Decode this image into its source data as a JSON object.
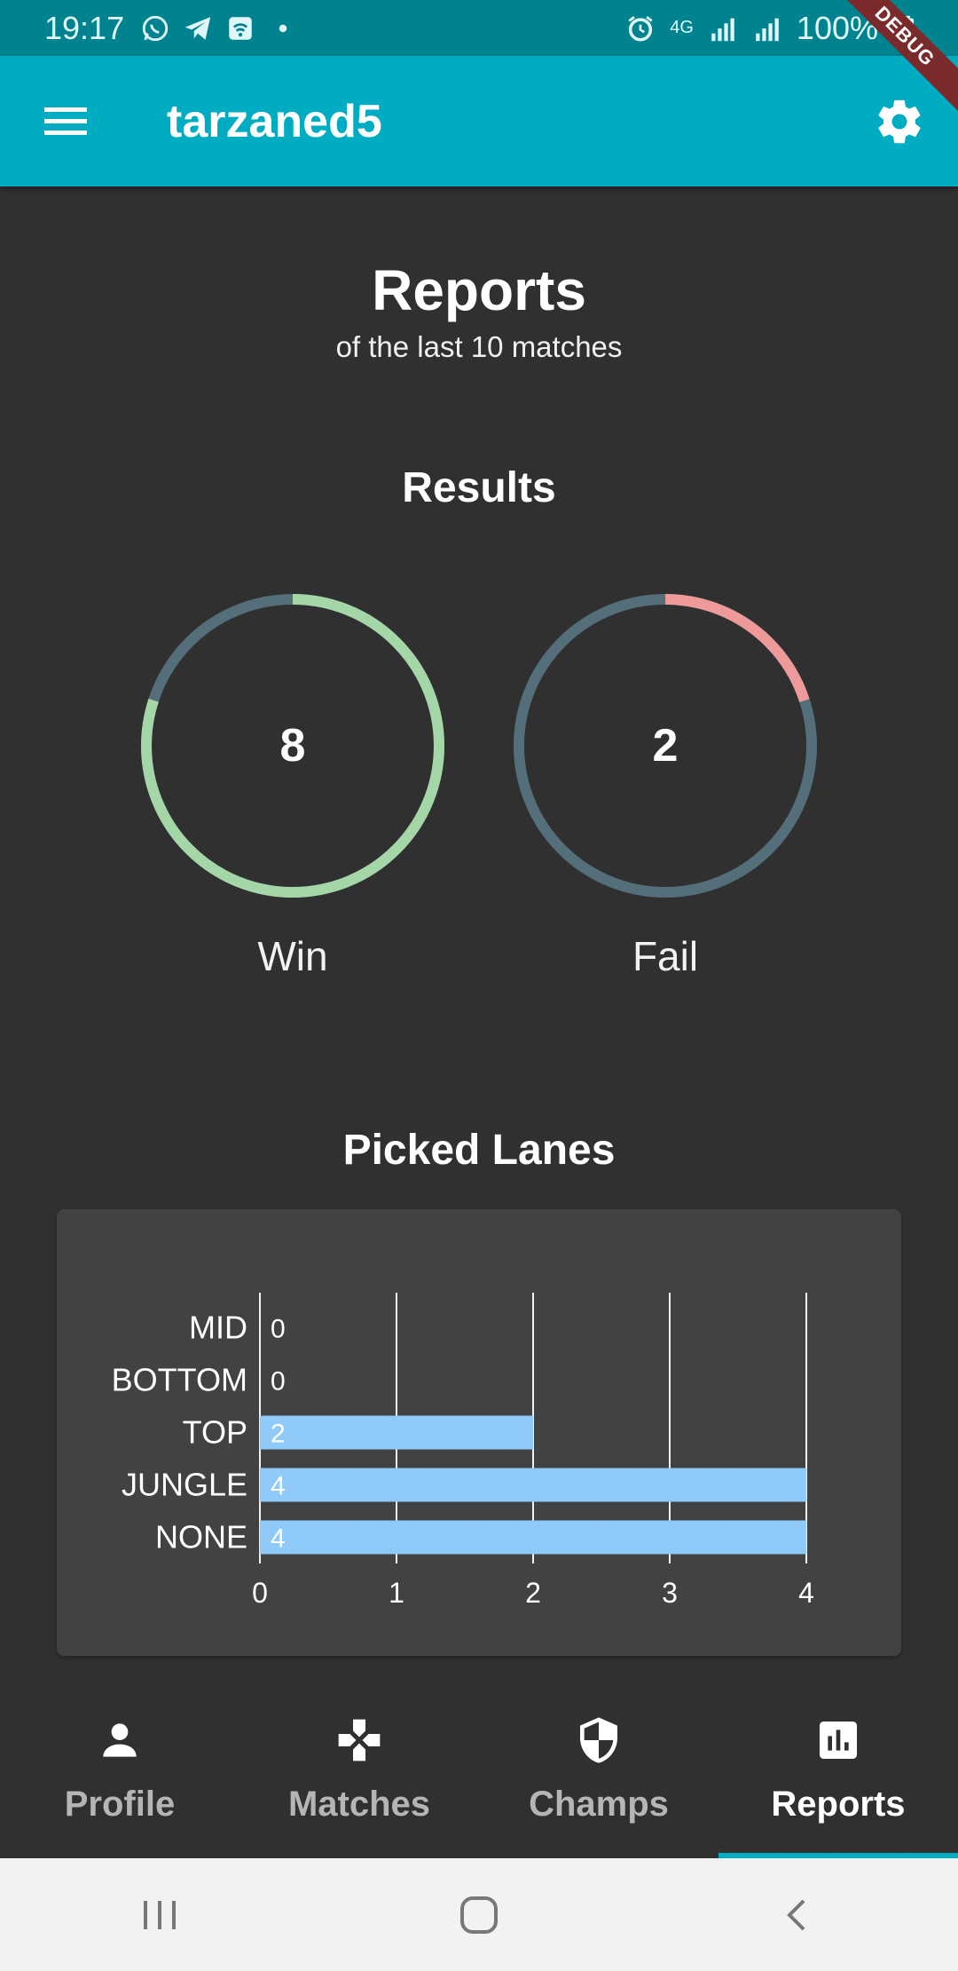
{
  "status_bar": {
    "time": "19:17",
    "battery": "100%",
    "network": "4G"
  },
  "debug_banner": "DEBUG",
  "app_bar": {
    "title": "tarzaned5",
    "menu_icon": "menu-icon",
    "settings_icon": "gear-icon",
    "color": "#00acc1"
  },
  "page": {
    "title": "Reports",
    "subtitle": "of the last 10 matches"
  },
  "results": {
    "title": "Results",
    "total": 10,
    "win": {
      "value": "8",
      "label": "Win",
      "fraction": 0.8,
      "color": "#a5d6a7"
    },
    "fail": {
      "value": "2",
      "label": "Fail",
      "fraction": 0.2,
      "color": "#ef9a9a"
    },
    "track_color": "#546e7a"
  },
  "lanes": {
    "title": "Picked Lanes"
  },
  "chart_data": {
    "type": "bar",
    "orientation": "horizontal",
    "categories": [
      "MID",
      "BOTTOM",
      "TOP",
      "JUNGLE",
      "NONE"
    ],
    "values": [
      0,
      0,
      2,
      4,
      4
    ],
    "xlim": [
      0,
      4
    ],
    "xticks": [
      "0",
      "1",
      "2",
      "3",
      "4"
    ],
    "grid": true,
    "bar_color": "#90caf9"
  },
  "bottom_nav": {
    "items": [
      {
        "label": "Profile",
        "icon": "person-icon",
        "active": false
      },
      {
        "label": "Matches",
        "icon": "gamepad-icon",
        "active": false
      },
      {
        "label": "Champs",
        "icon": "shield-icon",
        "active": false
      },
      {
        "label": "Reports",
        "icon": "bar-chart-icon",
        "active": true
      }
    ]
  },
  "system_nav": {
    "recents_icon": "recents-icon",
    "home_icon": "home-icon",
    "back_icon": "back-icon"
  }
}
